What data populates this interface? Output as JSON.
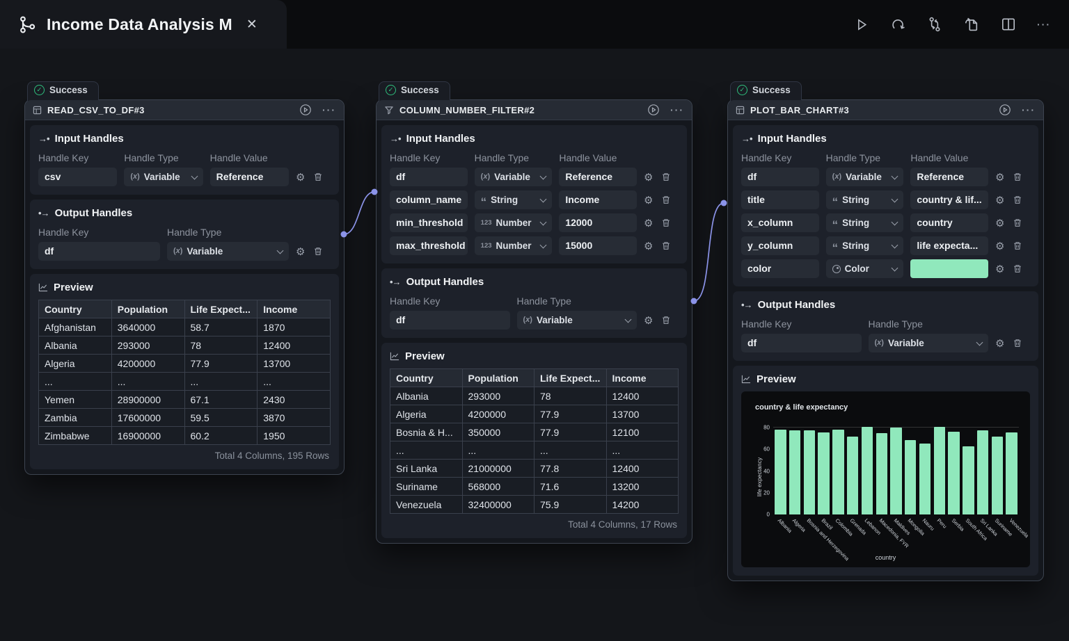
{
  "tab": {
    "title": "Income Data Analysis M"
  },
  "toolbar": {
    "buttons": [
      "run",
      "rerun",
      "swap-connections",
      "export-file",
      "split-view",
      "more"
    ]
  },
  "nodes": [
    {
      "status": "Success",
      "title": "READ_CSV_TO_DF#3",
      "input_handles": {
        "title": "Input Handles",
        "columns": [
          "Handle Key",
          "Handle Type",
          "Handle Value"
        ],
        "rows": [
          {
            "key": "csv",
            "type": "Variable",
            "value": "Reference"
          }
        ]
      },
      "output_handles": {
        "title": "Output Handles",
        "columns": [
          "Handle Key",
          "Handle Type"
        ],
        "rows": [
          {
            "key": "df",
            "type": "Variable"
          }
        ]
      },
      "preview": {
        "title": "Preview",
        "table": {
          "headers": [
            "Country",
            "Population",
            "Life Expect...",
            "Income"
          ],
          "rows": [
            [
              "Afghanistan",
              "3640000",
              "58.7",
              "1870"
            ],
            [
              "Albania",
              "293000",
              "78",
              "12400"
            ],
            [
              "Algeria",
              "4200000",
              "77.9",
              "13700"
            ],
            [
              "...",
              "...",
              "...",
              "..."
            ],
            [
              "Yemen",
              "28900000",
              "67.1",
              "2430"
            ],
            [
              "Zambia",
              "17600000",
              "59.5",
              "3870"
            ],
            [
              "Zimbabwe",
              "16900000",
              "60.2",
              "1950"
            ]
          ]
        },
        "footer": "Total 4 Columns, 195 Rows"
      }
    },
    {
      "status": "Success",
      "title": "COLUMN_NUMBER_FILTER#2",
      "input_handles": {
        "title": "Input Handles",
        "columns": [
          "Handle Key",
          "Handle Type",
          "Handle Value"
        ],
        "rows": [
          {
            "key": "df",
            "type": "Variable",
            "value": "Reference"
          },
          {
            "key": "column_name",
            "type": "String",
            "value": "Income"
          },
          {
            "key": "min_threshold",
            "type": "Number",
            "value": "12000"
          },
          {
            "key": "max_threshold",
            "type": "Number",
            "value": "15000"
          }
        ]
      },
      "output_handles": {
        "title": "Output Handles",
        "columns": [
          "Handle Key",
          "Handle Type"
        ],
        "rows": [
          {
            "key": "df",
            "type": "Variable"
          }
        ]
      },
      "preview": {
        "title": "Preview",
        "table": {
          "headers": [
            "Country",
            "Population",
            "Life Expect...",
            "Income"
          ],
          "rows": [
            [
              "Albania",
              "293000",
              "78",
              "12400"
            ],
            [
              "Algeria",
              "4200000",
              "77.9",
              "13700"
            ],
            [
              "Bosnia & H...",
              "350000",
              "77.9",
              "12100"
            ],
            [
              "...",
              "...",
              "...",
              "..."
            ],
            [
              "Sri Lanka",
              "21000000",
              "77.8",
              "12400"
            ],
            [
              "Suriname",
              "568000",
              "71.6",
              "13200"
            ],
            [
              "Venezuela",
              "32400000",
              "75.9",
              "14200"
            ]
          ]
        },
        "footer": "Total 4 Columns, 17 Rows"
      }
    },
    {
      "status": "Success",
      "title": "PLOT_BAR_CHART#3",
      "input_handles": {
        "title": "Input Handles",
        "columns": [
          "Handle Key",
          "Handle Type",
          "Handle Value"
        ],
        "rows": [
          {
            "key": "df",
            "type": "Variable",
            "value": "Reference"
          },
          {
            "key": "title",
            "type": "String",
            "value": "country & lif..."
          },
          {
            "key": "x_column",
            "type": "String",
            "value": "country"
          },
          {
            "key": "y_column",
            "type": "String",
            "value": "life expecta..."
          },
          {
            "key": "color",
            "type": "Color",
            "color": "#90e8bc"
          }
        ]
      },
      "output_handles": {
        "title": "Output Handles",
        "columns": [
          "Handle Key",
          "Handle Type"
        ],
        "rows": [
          {
            "key": "df",
            "type": "Variable"
          }
        ]
      },
      "preview": {
        "title": "Preview"
      }
    }
  ],
  "chart_data": {
    "type": "bar",
    "title": "country & life expectancy",
    "xlabel": "country",
    "ylabel": "life expectancy",
    "categories": [
      "Albania",
      "Algeria",
      "Bosnia and Herzegovina",
      "Brazil",
      "Colombia",
      "Grenada",
      "Lebanon",
      "Macedonia, FYR",
      "Maldives",
      "Mongolia",
      "Nauru",
      "Peru",
      "Serbia",
      "South Africa",
      "Sri Lanka",
      "Suriname",
      "Venezuela"
    ],
    "values": [
      78,
      77.9,
      77.9,
      75.5,
      78.5,
      72,
      80.5,
      75,
      80,
      68.5,
      65.5,
      80.5,
      76,
      63,
      77.8,
      71.6,
      75.9
    ],
    "yticks": [
      0,
      20,
      40,
      60,
      80
    ],
    "ylim": [
      0,
      84
    ],
    "color": "#90e8bc",
    "background": "#0b0c0e",
    "legend": false
  },
  "status_colors": {
    "success_green": "#2fbf7d",
    "edge_purple": "#8b93e8"
  }
}
